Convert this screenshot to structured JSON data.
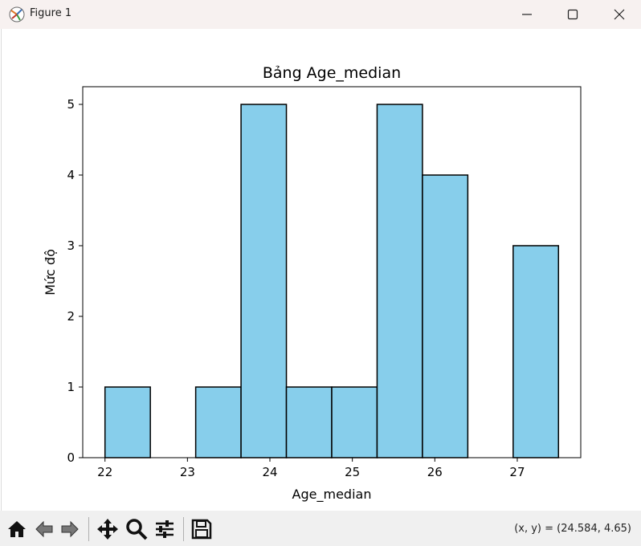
{
  "window": {
    "title": "Figure 1",
    "icons": [
      "matplotlib-app-icon",
      "minimize-icon",
      "maximize-icon",
      "close-icon"
    ]
  },
  "toolbar": {
    "buttons": [
      "home-icon",
      "back-icon",
      "forward-icon",
      "pan-icon",
      "zoom-icon",
      "configure-subplots-icon",
      "save-icon"
    ],
    "coords": "(x, y) = (24.584, 4.65)"
  },
  "colors": {
    "bar_fill": "#87ceeb",
    "bar_edge": "#000000",
    "titlebar_bg": "#f7f1f0",
    "toolbar_bg": "#f0f0f0"
  },
  "chart_data": {
    "type": "bar",
    "subtype": "histogram",
    "title": "Bảng Age_median",
    "xlabel": "Age_median",
    "ylabel": "Mức độ",
    "xlim": [
      21.73,
      27.77
    ],
    "ylim": [
      0,
      5.25
    ],
    "xticks": [
      22,
      23,
      24,
      25,
      26,
      27
    ],
    "yticks": [
      0,
      1,
      2,
      3,
      4,
      5
    ],
    "bins": [
      {
        "start": 22.0,
        "end": 22.55,
        "value": 1
      },
      {
        "start": 22.55,
        "end": 23.1,
        "value": 0
      },
      {
        "start": 23.1,
        "end": 23.65,
        "value": 1
      },
      {
        "start": 23.65,
        "end": 24.2,
        "value": 5
      },
      {
        "start": 24.2,
        "end": 24.75,
        "value": 1
      },
      {
        "start": 24.75,
        "end": 25.3,
        "value": 1
      },
      {
        "start": 25.3,
        "end": 25.85,
        "value": 5
      },
      {
        "start": 25.85,
        "end": 26.4,
        "value": 4
      },
      {
        "start": 26.4,
        "end": 26.95,
        "value": 0
      },
      {
        "start": 26.95,
        "end": 27.5,
        "value": 3
      }
    ],
    "grid": false,
    "legend": "none"
  }
}
